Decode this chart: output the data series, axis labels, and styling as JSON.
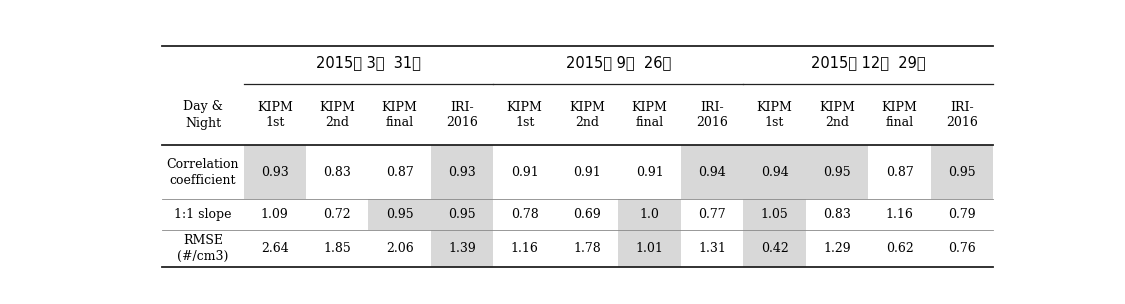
{
  "date_headers": [
    "2015년 3월  31일",
    "2015년 9월  26일",
    "2015년 12월  29일"
  ],
  "col_headers": [
    "KIPM\n1st",
    "KIPM\n2nd",
    "KIPM\nfinal",
    "IRI-\n2016"
  ],
  "row_headers": [
    "Correlation\ncoefficient",
    "1:1 slope",
    "RMSE\n(#/cm3)"
  ],
  "data": [
    [
      "0.93",
      "0.83",
      "0.87",
      "0.93",
      "0.91",
      "0.91",
      "0.91",
      "0.94",
      "0.94",
      "0.95",
      "0.87",
      "0.95"
    ],
    [
      "1.09",
      "0.72",
      "0.95",
      "0.95",
      "0.78",
      "0.69",
      "1.0",
      "0.77",
      "1.05",
      "0.83",
      "1.16",
      "0.79"
    ],
    [
      "2.64",
      "1.85",
      "2.06",
      "1.39",
      "1.16",
      "1.78",
      "1.01",
      "1.31",
      "0.42",
      "1.29",
      "0.62",
      "0.76"
    ]
  ],
  "gray_cells": [
    [
      0,
      3,
      7,
      8,
      9,
      11
    ],
    [
      2,
      3,
      6,
      8
    ],
    [
      3,
      6,
      8
    ]
  ],
  "gray_color": "#d8d8d8",
  "bg_color": "#ffffff",
  "text_color": "#000000",
  "font_size": 9.0,
  "col_header_font_size": 9.0,
  "date_font_size": 10.5,
  "row_header_font_size": 9.0
}
